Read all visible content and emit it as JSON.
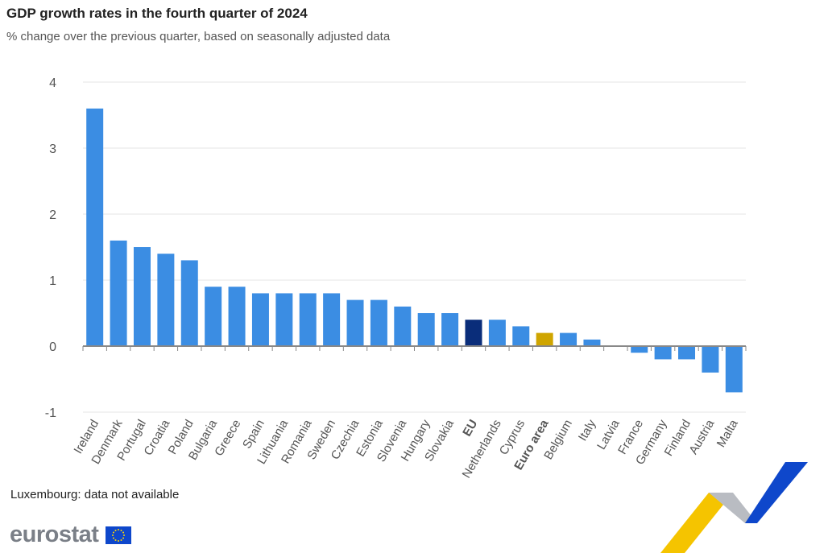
{
  "title": "GDP growth rates in the fourth quarter of 2024",
  "subtitle": "% change over the previous quarter, based on seasonally adjusted data",
  "note": "Luxembourg: data not available",
  "logo_text": "eurostat",
  "colors": {
    "country": "#3b8de3",
    "eu": "#0a2d7a",
    "euro_area": "#cfa500",
    "grid": "#e6e6e6"
  },
  "chart_data": {
    "type": "bar",
    "title": "GDP growth rates in the fourth quarter of 2024",
    "ylabel": "",
    "xlabel": "",
    "ylim": [
      -1,
      4
    ],
    "yticks": [
      -1,
      0,
      1,
      2,
      3,
      4
    ],
    "grid": true,
    "categories": [
      "Ireland",
      "Denmark",
      "Portugal",
      "Croatia",
      "Poland",
      "Bulgaria",
      "Greece",
      "Spain",
      "Lithuania",
      "Romania",
      "Sweden",
      "Czechia",
      "Estonia",
      "Slovenia",
      "Hungary",
      "Slovakia",
      "EU",
      "Netherlands",
      "Cyprus",
      "Euro area",
      "Belgium",
      "Italy",
      "Latvia",
      "France",
      "Germany",
      "Finland",
      "Austria",
      "Malta"
    ],
    "values": [
      3.6,
      1.6,
      1.5,
      1.4,
      1.3,
      0.9,
      0.9,
      0.8,
      0.8,
      0.8,
      0.8,
      0.7,
      0.7,
      0.6,
      0.5,
      0.5,
      0.4,
      0.4,
      0.3,
      0.2,
      0.2,
      0.1,
      0.0,
      -0.1,
      -0.2,
      -0.2,
      -0.4,
      -0.7
    ],
    "highlight": {
      "EU": "eu",
      "Euro area": "euro_area"
    }
  }
}
